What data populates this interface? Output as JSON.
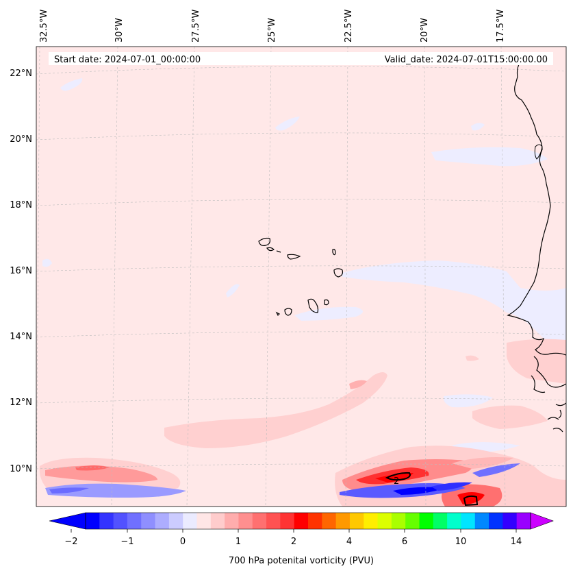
{
  "header": {
    "start_label": "Start date: 2024-07-01_00:00:00",
    "valid_label": "Valid_date: 2024-07-01T15:00:00.00"
  },
  "lon_labels": [
    "32.5°W",
    "30°W",
    "27.5°W",
    "25°W",
    "22.5°W",
    "20°W",
    "17.5°W"
  ],
  "lat_labels": [
    "22°N",
    "20°N",
    "18°N",
    "16°N",
    "14°N",
    "12°N",
    "10°N"
  ],
  "contour_label": "2",
  "colorbar": {
    "title": "700 hPa potenital vorticity (PVU)",
    "tick_labels": [
      "−2",
      "−1",
      "0",
      "1",
      "2",
      "4",
      "6",
      "10",
      "14"
    ],
    "colors": [
      "#0000ff",
      "#3333ff",
      "#5252ff",
      "#7070ff",
      "#8f8fff",
      "#adadff",
      "#ccccff",
      "#ebebff",
      "#ffe6e6",
      "#ffcccc",
      "#ffadad",
      "#ff8f8f",
      "#ff7070",
      "#ff5252",
      "#ff3333",
      "#ff0000",
      "#ff3300",
      "#ff6600",
      "#ff9900",
      "#ffc800",
      "#ffee00",
      "#dcff00",
      "#aaff00",
      "#66ff00",
      "#00ff00",
      "#00ff66",
      "#00ffcc",
      "#00e5ff",
      "#0088ff",
      "#0033ff",
      "#3300ff",
      "#9900ff",
      "#cc00ff"
    ]
  },
  "colors": {
    "background_field": "#ffe8e8",
    "weak_negative": "#ececff",
    "weak_positive": "#ffcccc",
    "coast": "#000000"
  }
}
